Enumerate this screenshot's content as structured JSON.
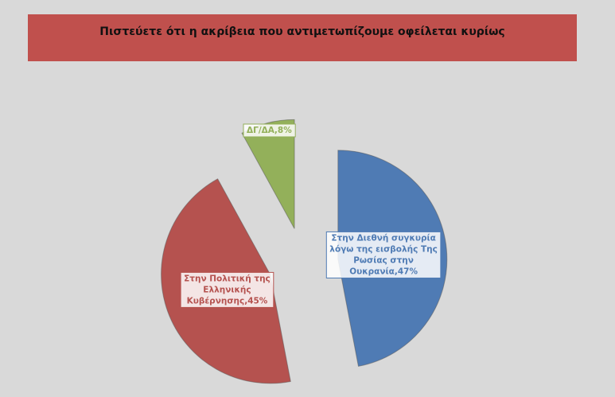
{
  "chart_data": {
    "type": "pie",
    "title": "Πιστεύετε ότι η ακρίβεια που αντιμετωπίζουμε οφείλεται κυρίως",
    "values": [
      47,
      45,
      8
    ],
    "value_labels": [
      "Στην Διεθνή συγκυρία λόγω της εισβολής Της Ρωσίας στην Ουκρανία,47%",
      "Στην Πολιτική της Ελληνικής Κυβέρνησης,45%",
      "ΔΓ/ΔΑ,8%"
    ],
    "colors": [
      "#4f7bb4",
      "#b5524f",
      "#93b05a"
    ],
    "exploded": true
  }
}
